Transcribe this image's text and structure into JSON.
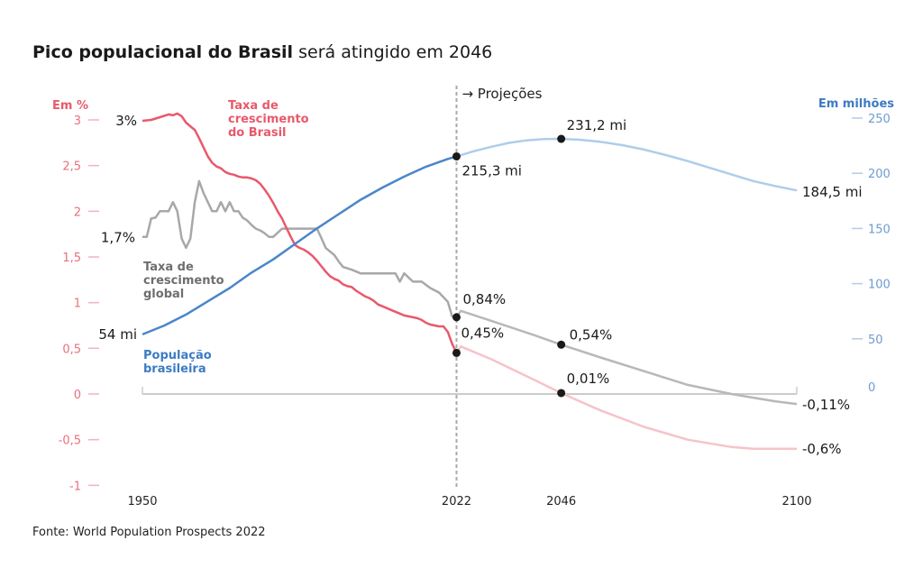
{
  "chart_data": {
    "type": "line",
    "title": {
      "bold": "Pico populacional do Brasil",
      "regular": " será atingido em 2046"
    },
    "source": "Fonte: World Population Prospects 2022",
    "projection_label": "→ Projeções",
    "projection_start_year": 2022,
    "x_ticks": [
      1950,
      2022,
      2046,
      2100
    ],
    "x_range": [
      1950,
      2100
    ],
    "left_axis": {
      "label": "Em %",
      "range": [
        -1,
        3
      ],
      "ticks": [
        {
          "value": 3,
          "label": "3"
        },
        {
          "value": 2.5,
          "label": "2,5"
        },
        {
          "value": 2,
          "label": "2"
        },
        {
          "value": 1.5,
          "label": "1,5"
        },
        {
          "value": 1,
          "label": "1"
        },
        {
          "value": 0.5,
          "label": "0,5"
        },
        {
          "value": 0,
          "label": "0"
        },
        {
          "value": -0.5,
          "label": "-0,5"
        },
        {
          "value": -1,
          "label": "-1"
        }
      ],
      "color": "#e8707e"
    },
    "right_axis": {
      "label": "Em milhões",
      "range": [
        0,
        250
      ],
      "ticks": [
        {
          "value": 250,
          "label": "250"
        },
        {
          "value": 200,
          "label": "200"
        },
        {
          "value": 150,
          "label": "150"
        },
        {
          "value": 100,
          "label": "100"
        },
        {
          "value": 50,
          "label": "50"
        },
        {
          "value": 0,
          "label": "0"
        }
      ],
      "color": "#6d9bd1"
    },
    "series": [
      {
        "name": "Taxa de crescimento do Brasil",
        "label_lines": [
          "Taxa de",
          "crescimento",
          "do Brasil"
        ],
        "axis": "left",
        "color": "#e8596b",
        "projection_color": "#f6c3c9",
        "x": [
          1950,
          1952,
          1954,
          1956,
          1957,
          1958,
          1959,
          1960,
          1961,
          1962,
          1963,
          1964,
          1965,
          1966,
          1967,
          1968,
          1969,
          1970,
          1971,
          1972,
          1973,
          1974,
          1975,
          1976,
          1977,
          1978,
          1979,
          1980,
          1981,
          1982,
          1983,
          1984,
          1985,
          1986,
          1987,
          1988,
          1989,
          1990,
          1991,
          1992,
          1993,
          1994,
          1995,
          1996,
          1997,
          1998,
          1999,
          2000,
          2001,
          2002,
          2003,
          2004,
          2005,
          2006,
          2007,
          2008,
          2009,
          2010,
          2011,
          2012,
          2013,
          2014,
          2015,
          2016,
          2017,
          2018,
          2019,
          2020,
          2021,
          2022
        ],
        "values": [
          2.99,
          3.0,
          3.03,
          3.06,
          3.05,
          3.07,
          3.04,
          2.97,
          2.93,
          2.89,
          2.8,
          2.7,
          2.6,
          2.53,
          2.49,
          2.47,
          2.43,
          2.41,
          2.4,
          2.38,
          2.37,
          2.37,
          2.36,
          2.34,
          2.3,
          2.24,
          2.17,
          2.09,
          2.0,
          1.92,
          1.82,
          1.72,
          1.63,
          1.6,
          1.58,
          1.55,
          1.51,
          1.46,
          1.4,
          1.34,
          1.29,
          1.26,
          1.24,
          1.2,
          1.18,
          1.17,
          1.13,
          1.1,
          1.07,
          1.05,
          1.02,
          0.98,
          0.96,
          0.94,
          0.92,
          0.9,
          0.88,
          0.86,
          0.85,
          0.84,
          0.83,
          0.81,
          0.78,
          0.76,
          0.75,
          0.74,
          0.74,
          0.68,
          0.55,
          0.45
        ],
        "projection_x": [
          2022,
          2023,
          2030,
          2040,
          2046,
          2055,
          2065,
          2075,
          2085,
          2090,
          2100
        ],
        "projection_values": [
          0.45,
          0.52,
          0.38,
          0.15,
          0.01,
          -0.18,
          -0.36,
          -0.5,
          -0.58,
          -0.6,
          -0.6
        ]
      },
      {
        "name": "Taxa de crescimento global",
        "label_lines": [
          "Taxa de",
          "crescimento",
          "global"
        ],
        "axis": "left",
        "color": "#a8a8a8",
        "projection_color": "#b8b8b8",
        "x": [
          1950,
          1951,
          1952,
          1953,
          1954,
          1955,
          1956,
          1957,
          1958,
          1959,
          1960,
          1961,
          1962,
          1963,
          1964,
          1965,
          1966,
          1967,
          1968,
          1969,
          1970,
          1971,
          1972,
          1973,
          1974,
          1975,
          1976,
          1977,
          1978,
          1979,
          1980,
          1982,
          1985,
          1988,
          1990,
          1991,
          1992,
          1993,
          1994,
          1995,
          1996,
          1998,
          2000,
          2002,
          2005,
          2008,
          2009,
          2010,
          2012,
          2014,
          2016,
          2018,
          2020,
          2021,
          2022
        ],
        "values": [
          1.72,
          1.72,
          1.92,
          1.93,
          2.0,
          2.0,
          2.0,
          2.1,
          2.0,
          1.7,
          1.6,
          1.7,
          2.1,
          2.33,
          2.2,
          2.1,
          2.0,
          2.0,
          2.1,
          2.0,
          2.1,
          2.0,
          2.0,
          1.93,
          1.9,
          1.85,
          1.81,
          1.79,
          1.76,
          1.72,
          1.72,
          1.81,
          1.81,
          1.81,
          1.81,
          1.71,
          1.6,
          1.56,
          1.52,
          1.45,
          1.39,
          1.36,
          1.32,
          1.32,
          1.32,
          1.32,
          1.23,
          1.32,
          1.23,
          1.23,
          1.16,
          1.11,
          1.01,
          0.85,
          0.84
        ],
        "projection_x": [
          2022,
          2023,
          2030,
          2040,
          2046,
          2055,
          2065,
          2075,
          2085,
          2095,
          2100
        ],
        "projection_values": [
          0.84,
          0.91,
          0.8,
          0.64,
          0.54,
          0.4,
          0.25,
          0.1,
          0.0,
          -0.08,
          -0.11
        ]
      },
      {
        "name": "População brasileira",
        "label_lines": [
          "População",
          "brasileira"
        ],
        "axis": "right",
        "unit": "milhões",
        "color": "#4a86c8",
        "projection_color": "#aecdea",
        "x": [
          1950,
          1955,
          1960,
          1965,
          1970,
          1975,
          1980,
          1985,
          1990,
          1995,
          2000,
          2005,
          2010,
          2015,
          2020,
          2022
        ],
        "values": [
          54,
          62,
          72,
          84,
          96,
          110,
          122,
          136,
          150,
          163,
          176,
          187,
          197,
          206,
          213,
          215.3
        ],
        "projection_x": [
          2022,
          2026,
          2030,
          2034,
          2038,
          2042,
          2046,
          2050,
          2055,
          2060,
          2065,
          2070,
          2075,
          2080,
          2085,
          2090,
          2095,
          2100
        ],
        "projection_values": [
          215.3,
          220,
          224,
          227.5,
          229.8,
          231,
          231.2,
          230.5,
          228.5,
          225.5,
          221.5,
          216.5,
          211,
          205,
          199,
          193,
          188.5,
          184.5
        ]
      }
    ],
    "annotations": [
      {
        "text": "3%",
        "series": "Taxa de crescimento do Brasil",
        "x": 1950,
        "value": 2.99
      },
      {
        "text": "1,7%",
        "series": "Taxa de crescimento global",
        "x": 1950,
        "value": 1.72
      },
      {
        "text": "54 mi",
        "series": "População brasileira",
        "x": 1950,
        "value": 54
      },
      {
        "text": "215,3 mi",
        "series": "População brasileira",
        "x": 2022,
        "value": 215.3,
        "marker": true
      },
      {
        "text": "231,2 mi",
        "series": "População brasileira",
        "x": 2046,
        "value": 231.2,
        "marker": true
      },
      {
        "text": "184,5 mi",
        "series": "População brasileira",
        "x": 2100,
        "value": 184.5
      },
      {
        "text": "0,84%",
        "series": "Taxa de crescimento global",
        "x": 2022,
        "value": 0.84,
        "marker": true
      },
      {
        "text": "0,45%",
        "series": "Taxa de crescimento do Brasil",
        "x": 2022,
        "value": 0.45,
        "marker": true
      },
      {
        "text": "0,54%",
        "series": "Taxa de crescimento global",
        "x": 2046,
        "value": 0.54,
        "marker": true
      },
      {
        "text": "0,01%",
        "series": "Taxa de crescimento do Brasil",
        "x": 2046,
        "value": 0.01,
        "marker": true
      },
      {
        "text": "-0,11%",
        "series": "Taxa de crescimento global",
        "x": 2100,
        "value": -0.11
      },
      {
        "text": "-0,6%",
        "series": "Taxa de crescimento do Brasil",
        "x": 2100,
        "value": -0.6
      }
    ]
  }
}
